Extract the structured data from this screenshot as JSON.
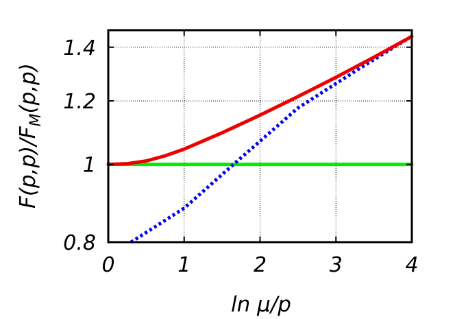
{
  "chart_data": {
    "type": "line",
    "title": "",
    "xlabel": "ln μ/p",
    "ylabel": "F(p,p)/F_M(p,p)",
    "xlim": [
      0,
      4
    ],
    "ylim": [
      0.8,
      1.47
    ],
    "y_scale": "log",
    "grid": true,
    "legend": "none",
    "x_ticks": [
      {
        "value": 0,
        "label": "0"
      },
      {
        "value": 1,
        "label": "1"
      },
      {
        "value": 2,
        "label": "2"
      },
      {
        "value": 3,
        "label": "3"
      },
      {
        "value": 4,
        "label": "4"
      }
    ],
    "y_ticks": [
      {
        "value": 0.8,
        "label": "0.8"
      },
      {
        "value": 1.0,
        "label": "1"
      },
      {
        "value": 1.2,
        "label": "1.2"
      },
      {
        "value": 1.4,
        "label": "1.4"
      }
    ],
    "series": [
      {
        "style": "solid",
        "color": "#ee0000",
        "x": [
          0,
          0.25,
          0.5,
          0.75,
          1.0,
          1.5,
          2.0,
          2.5,
          3.0,
          3.5,
          4.0
        ],
        "y": [
          1.0,
          1.002,
          1.01,
          1.025,
          1.045,
          1.095,
          1.152,
          1.215,
          1.284,
          1.36,
          1.444
        ]
      },
      {
        "style": "solid",
        "color": "#00ee00",
        "x": [
          0,
          4
        ],
        "y": [
          1.0,
          1.0
        ]
      },
      {
        "style": "dotted",
        "color": "#0000ee",
        "x": [
          0.3,
          1.0,
          1.65,
          2.5,
          3.3,
          4.0
        ],
        "y": [
          0.8,
          0.882,
          1.0,
          1.176,
          1.315,
          1.445
        ]
      }
    ]
  }
}
